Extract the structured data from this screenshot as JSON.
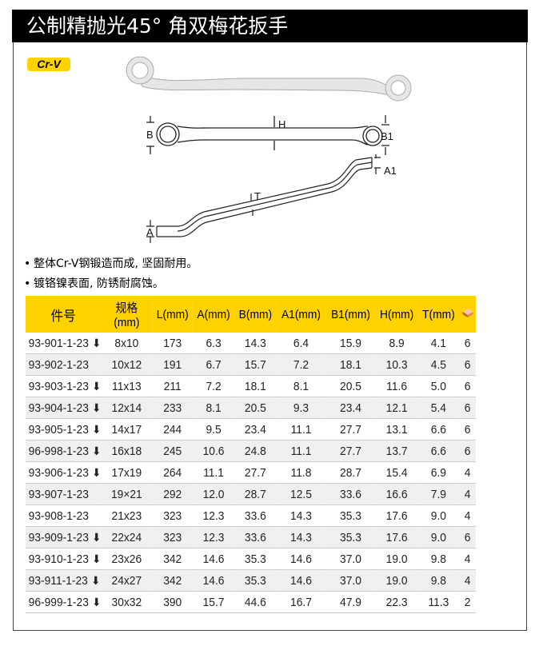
{
  "title": "公制精抛光45° 角双梅花扳手",
  "badge": "Cr-V",
  "diagram": {
    "labels": {
      "b": "B",
      "h": "H",
      "b1": "B1",
      "a1": "A1",
      "t": "T",
      "a": "A"
    }
  },
  "features": [
    "整体Cr-V钢锻造而成, 坚固耐用。",
    "镀铬镍表面, 防锈耐腐蚀。"
  ],
  "table": {
    "headers": [
      "件号",
      "规格\n(mm)",
      "L(mm)",
      "A(mm)",
      "B(mm)",
      "A1(mm)",
      "B1(mm)",
      "H(mm)",
      "T(mm)"
    ],
    "header_icon": "box-pack-icon",
    "rows": [
      [
        "93-901-1-23",
        true,
        "8x10",
        "173",
        "6.3",
        "14.3",
        "6.4",
        "15.9",
        "8.9",
        "4.1",
        "6"
      ],
      [
        "93-902-1-23",
        false,
        "10x12",
        "191",
        "6.7",
        "15.7",
        "7.2",
        "18.1",
        "10.3",
        "4.5",
        "6"
      ],
      [
        "93-903-1-23",
        true,
        "11x13",
        "211",
        "7.2",
        "18.1",
        "8.1",
        "20.5",
        "11.6",
        "5.0",
        "6"
      ],
      [
        "93-904-1-23",
        true,
        "12x14",
        "233",
        "8.1",
        "20.5",
        "9.3",
        "23.4",
        "12.1",
        "5.4",
        "6"
      ],
      [
        "93-905-1-23",
        true,
        "14x17",
        "244",
        "9.5",
        "23.4",
        "11.1",
        "27.7",
        "13.1",
        "6.6",
        "6"
      ],
      [
        "96-998-1-23",
        true,
        "16x18",
        "245",
        "10.6",
        "24.8",
        "11.1",
        "27.7",
        "13.7",
        "6.6",
        "6"
      ],
      [
        "93-906-1-23",
        true,
        "17x19",
        "264",
        "11.1",
        "27.7",
        "11.8",
        "28.7",
        "15.4",
        "6.9",
        "4"
      ],
      [
        "93-907-1-23",
        false,
        "19×21",
        "292",
        "12.0",
        "28.7",
        "12.5",
        "33.6",
        "16.6",
        "7.9",
        "4"
      ],
      [
        "93-908-1-23",
        false,
        "21x23",
        "323",
        "12.3",
        "33.6",
        "14.3",
        "35.3",
        "17.6",
        "9.0",
        "4"
      ],
      [
        "93-909-1-23",
        true,
        "22x24",
        "323",
        "12.3",
        "33.6",
        "14.3",
        "35.3",
        "17.6",
        "9.0",
        "6"
      ],
      [
        "93-910-1-23",
        true,
        "23x26",
        "342",
        "14.6",
        "35.3",
        "14.6",
        "37.0",
        "19.0",
        "9.8",
        "4"
      ],
      [
        "93-911-1-23",
        true,
        "24x27",
        "342",
        "14.6",
        "35.3",
        "14.6",
        "37.0",
        "19.0",
        "9.8",
        "4"
      ],
      [
        "96-999-1-23",
        true,
        "30x32",
        "390",
        "15.7",
        "44.6",
        "16.7",
        "47.9",
        "22.3",
        "11.3",
        "2"
      ]
    ]
  },
  "colors": {
    "accent": "#ffd200",
    "titlebar": "#000000"
  }
}
